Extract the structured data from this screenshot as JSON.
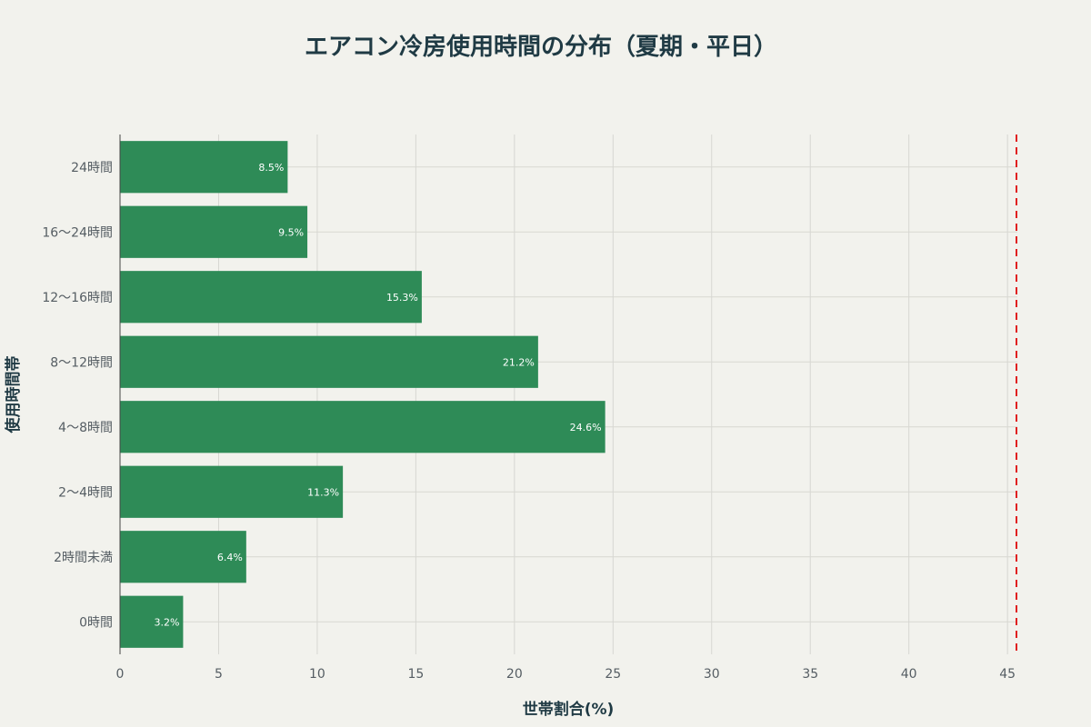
{
  "colors": {
    "bar": "#2e8b57",
    "grid": "#d7d7d2",
    "axis_line": "#444444",
    "reference_line": "#e02020",
    "background": "#f2f2ed"
  },
  "chart_data": {
    "type": "bar",
    "orientation": "horizontal",
    "title": "エアコン冷房使用時間の分布（夏期・平日）",
    "xlabel": "世帯割合(%)",
    "ylabel": "使用時間帯",
    "categories": [
      "0時間",
      "2時間未満",
      "2〜4時間",
      "4〜8時間",
      "8〜12時間",
      "12〜16時間",
      "16〜24時間",
      "24時間"
    ],
    "values": [
      3.2,
      6.4,
      11.3,
      24.6,
      21.2,
      15.3,
      9.5,
      8.5
    ],
    "value_labels": [
      "3.2%",
      "6.4%",
      "11.3%",
      "24.6%",
      "21.2%",
      "15.3%",
      "9.5%",
      "8.5%"
    ],
    "xlim": [
      0,
      45.5
    ],
    "xticks": [
      0,
      5,
      10,
      15,
      20,
      25,
      30,
      35,
      40,
      45
    ],
    "reference_line": {
      "x": 45.5,
      "style": "dashed"
    },
    "grid": true,
    "legend": "none"
  }
}
